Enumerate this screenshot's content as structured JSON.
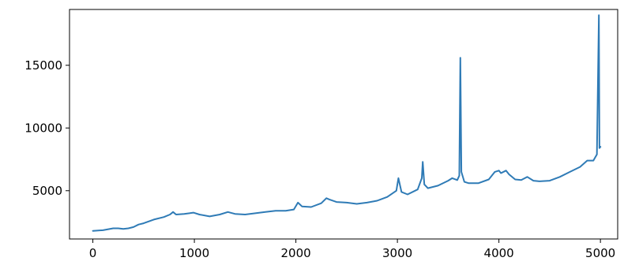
{
  "chart_data": {
    "type": "line",
    "title": "",
    "xlabel": "",
    "ylabel": "",
    "xlim": [
      -230,
      5170
    ],
    "ylim": [
      1150,
      19450
    ],
    "x_ticks": [
      0,
      1000,
      2000,
      3000,
      4000,
      5000
    ],
    "x_tick_labels": [
      "0",
      "1000",
      "2000",
      "3000",
      "4000",
      "5000"
    ],
    "y_ticks": [
      5000,
      10000,
      15000
    ],
    "y_tick_labels": [
      "5000",
      "10000",
      "15000"
    ],
    "grid": false,
    "colors": {
      "line": "#2f7bb6",
      "axes": "#000000",
      "background": "#ffffff"
    },
    "series": [
      {
        "points": [
          [
            0,
            1800
          ],
          [
            100,
            1850
          ],
          [
            200,
            2000
          ],
          [
            250,
            2000
          ],
          [
            300,
            1950
          ],
          [
            350,
            2000
          ],
          [
            400,
            2100
          ],
          [
            450,
            2300
          ],
          [
            500,
            2400
          ],
          [
            600,
            2700
          ],
          [
            700,
            2900
          ],
          [
            760,
            3100
          ],
          [
            790,
            3300
          ],
          [
            820,
            3100
          ],
          [
            900,
            3150
          ],
          [
            950,
            3200
          ],
          [
            990,
            3250
          ],
          [
            1050,
            3100
          ],
          [
            1150,
            2950
          ],
          [
            1250,
            3100
          ],
          [
            1330,
            3300
          ],
          [
            1400,
            3150
          ],
          [
            1500,
            3100
          ],
          [
            1600,
            3200
          ],
          [
            1700,
            3300
          ],
          [
            1800,
            3400
          ],
          [
            1900,
            3400
          ],
          [
            1980,
            3500
          ],
          [
            2020,
            4050
          ],
          [
            2060,
            3750
          ],
          [
            2150,
            3700
          ],
          [
            2250,
            4000
          ],
          [
            2300,
            4400
          ],
          [
            2330,
            4300
          ],
          [
            2400,
            4100
          ],
          [
            2500,
            4050
          ],
          [
            2600,
            3950
          ],
          [
            2700,
            4050
          ],
          [
            2800,
            4200
          ],
          [
            2900,
            4500
          ],
          [
            2990,
            5000
          ],
          [
            3010,
            6000
          ],
          [
            3040,
            4900
          ],
          [
            3100,
            4700
          ],
          [
            3200,
            5100
          ],
          [
            3240,
            6000
          ],
          [
            3250,
            7300
          ],
          [
            3265,
            5500
          ],
          [
            3300,
            5200
          ],
          [
            3400,
            5400
          ],
          [
            3500,
            5800
          ],
          [
            3540,
            6000
          ],
          [
            3590,
            5850
          ],
          [
            3610,
            6200
          ],
          [
            3620,
            15600
          ],
          [
            3630,
            6500
          ],
          [
            3660,
            5700
          ],
          [
            3700,
            5600
          ],
          [
            3800,
            5600
          ],
          [
            3900,
            5900
          ],
          [
            3960,
            6500
          ],
          [
            4000,
            6600
          ],
          [
            4020,
            6400
          ],
          [
            4070,
            6600
          ],
          [
            4100,
            6300
          ],
          [
            4160,
            5900
          ],
          [
            4220,
            5850
          ],
          [
            4280,
            6100
          ],
          [
            4340,
            5800
          ],
          [
            4400,
            5750
          ],
          [
            4500,
            5800
          ],
          [
            4600,
            6100
          ],
          [
            4700,
            6500
          ],
          [
            4800,
            6900
          ],
          [
            4870,
            7400
          ],
          [
            4930,
            7400
          ],
          [
            4965,
            7900
          ],
          [
            4985,
            19000
          ],
          [
            4990,
            8400
          ],
          [
            5000,
            8500
          ]
        ]
      }
    ]
  }
}
